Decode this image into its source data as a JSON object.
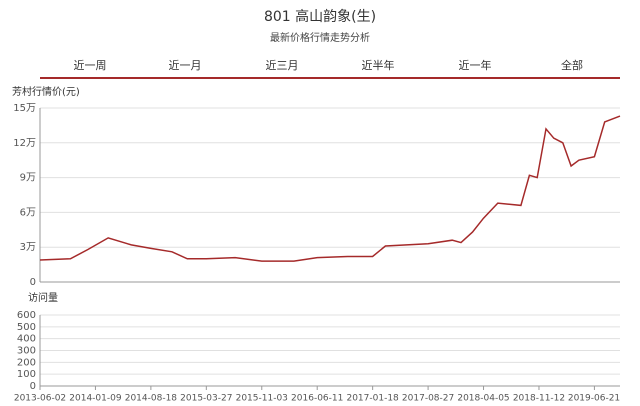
{
  "header": {
    "title": "801 高山韵象(生)",
    "subtitle": "最新价格行情走势分析"
  },
  "tabs": [
    "近一周",
    "近一月",
    "近三月",
    "近半年",
    "近一年",
    "全部"
  ],
  "chart_data": [
    {
      "type": "line",
      "y_label": "芳村行情价(元)",
      "color": "#a52a2a",
      "grid": true,
      "x": [
        "2013-06-02",
        "2013-10-01",
        "2013-12-10",
        "2014-03-01",
        "2014-06-01",
        "2014-08-18",
        "2014-11-10",
        "2015-01-10",
        "2015-03-27",
        "2015-07-20",
        "2015-11-03",
        "2016-03-10",
        "2016-06-11",
        "2016-10-10",
        "2017-01-18",
        "2017-03-10",
        "2017-08-27",
        "2017-12-01",
        "2018-01-05",
        "2018-02-20",
        "2018-04-05",
        "2018-06-01",
        "2018-09-01",
        "2018-10-05",
        "2018-11-05",
        "2018-12-10",
        "2019-01-10",
        "2019-02-15",
        "2019-03-20",
        "2019-04-20",
        "2019-06-21",
        "2019-08-01",
        "2019-10-01"
      ],
      "values": [
        19000,
        20000,
        28000,
        38000,
        32000,
        29000,
        26000,
        20000,
        20000,
        21000,
        18000,
        18000,
        21000,
        22000,
        22000,
        31000,
        33000,
        36000,
        34000,
        43000,
        55000,
        68000,
        66000,
        92000,
        90000,
        132000,
        124000,
        120000,
        100000,
        105000,
        108000,
        138000,
        143000
      ],
      "xlim": [
        "2013-06-02",
        "2019-10-01"
      ],
      "xticks": [
        "2013-06-02",
        "2014-01-09",
        "2014-08-18",
        "2015-03-27",
        "2015-11-03",
        "2016-06-11",
        "2017-01-18",
        "2017-08-27",
        "2018-04-05",
        "2018-11-12",
        "2019-06-21"
      ],
      "ylim": [
        0,
        150000
      ],
      "yticks": [
        0,
        {
          "value": 30000,
          "label": "3万"
        },
        {
          "value": 60000,
          "label": "6万"
        },
        {
          "value": 90000,
          "label": "9万"
        },
        {
          "value": 120000,
          "label": "12万"
        },
        {
          "value": 150000,
          "label": "15万"
        }
      ]
    },
    {
      "type": "bar",
      "y_label": "访问量",
      "grid": true,
      "ylim": [
        0,
        600
      ],
      "yticks": [
        0,
        100,
        200,
        300,
        400,
        500,
        600
      ]
    }
  ]
}
